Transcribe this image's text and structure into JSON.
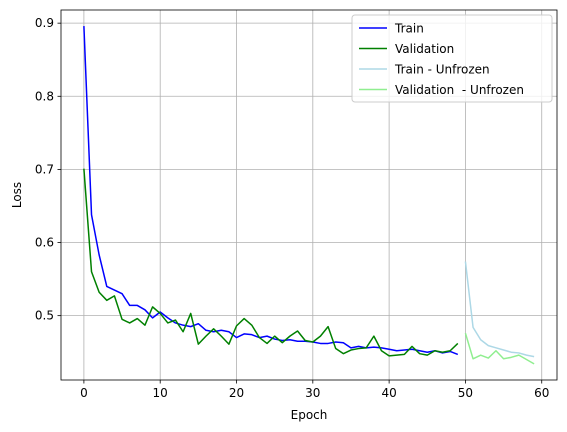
{
  "chart_data": {
    "type": "line",
    "title": "",
    "xlabel": "Epoch",
    "ylabel": "Loss",
    "xlim": [
      -3,
      62
    ],
    "ylim": [
      0.412,
      0.918
    ],
    "xticks": [
      0,
      10,
      20,
      30,
      40,
      50,
      60
    ],
    "yticks": [
      0.5,
      0.6,
      0.7,
      0.8,
      0.9
    ],
    "xtick_labels": [
      "0",
      "10",
      "20",
      "30",
      "40",
      "50",
      "60"
    ],
    "ytick_labels": [
      "0.5",
      "0.6",
      "0.7",
      "0.8",
      "0.9"
    ],
    "grid": true,
    "legend_position": "top-right",
    "series": [
      {
        "name": "Train",
        "color": "#0000ff",
        "x": [
          0,
          1,
          2,
          3,
          4,
          5,
          6,
          7,
          8,
          9,
          10,
          11,
          12,
          13,
          14,
          15,
          16,
          17,
          18,
          19,
          20,
          21,
          22,
          23,
          24,
          25,
          26,
          27,
          28,
          29,
          30,
          31,
          32,
          33,
          34,
          35,
          36,
          37,
          38,
          39,
          40,
          41,
          42,
          43,
          44,
          45,
          46,
          47,
          48,
          49
        ],
        "values": [
          0.896,
          0.638,
          0.583,
          0.54,
          0.535,
          0.53,
          0.514,
          0.514,
          0.508,
          0.497,
          0.505,
          0.497,
          0.49,
          0.487,
          0.485,
          0.489,
          0.48,
          0.478,
          0.48,
          0.478,
          0.47,
          0.475,
          0.474,
          0.47,
          0.472,
          0.468,
          0.466,
          0.467,
          0.465,
          0.465,
          0.464,
          0.462,
          0.462,
          0.464,
          0.463,
          0.456,
          0.458,
          0.456,
          0.457,
          0.456,
          0.454,
          0.452,
          0.453,
          0.454,
          0.452,
          0.45,
          0.452,
          0.449,
          0.451,
          0.447
        ]
      },
      {
        "name": "Validation",
        "color": "#008000",
        "x": [
          0,
          1,
          2,
          3,
          4,
          5,
          6,
          7,
          8,
          9,
          10,
          11,
          12,
          13,
          14,
          15,
          16,
          17,
          18,
          19,
          20,
          21,
          22,
          23,
          24,
          25,
          26,
          27,
          28,
          29,
          30,
          31,
          32,
          33,
          34,
          35,
          36,
          37,
          38,
          39,
          40,
          41,
          42,
          43,
          44,
          45,
          46,
          47,
          48,
          49
        ],
        "values": [
          0.701,
          0.56,
          0.532,
          0.521,
          0.527,
          0.495,
          0.49,
          0.496,
          0.487,
          0.512,
          0.503,
          0.49,
          0.494,
          0.478,
          0.503,
          0.461,
          0.472,
          0.482,
          0.472,
          0.461,
          0.486,
          0.496,
          0.487,
          0.47,
          0.462,
          0.472,
          0.463,
          0.472,
          0.479,
          0.466,
          0.464,
          0.472,
          0.485,
          0.455,
          0.448,
          0.453,
          0.455,
          0.456,
          0.472,
          0.452,
          0.445,
          0.446,
          0.447,
          0.458,
          0.448,
          0.446,
          0.452,
          0.45,
          0.452,
          0.462
        ]
      },
      {
        "name": "Train - Unfrozen",
        "color": "#add8e6",
        "x": [
          50,
          51,
          52,
          53,
          54,
          55,
          56,
          57,
          58,
          59
        ],
        "values": [
          0.574,
          0.484,
          0.467,
          0.459,
          0.456,
          0.453,
          0.45,
          0.449,
          0.446,
          0.444
        ]
      },
      {
        "name": "Validation  - Unfrozen",
        "color": "#90ee90",
        "x": [
          50,
          51,
          52,
          53,
          54,
          55,
          56,
          57,
          58,
          59
        ],
        "values": [
          0.476,
          0.441,
          0.446,
          0.442,
          0.452,
          0.441,
          0.443,
          0.446,
          0.44,
          0.434
        ]
      }
    ]
  }
}
